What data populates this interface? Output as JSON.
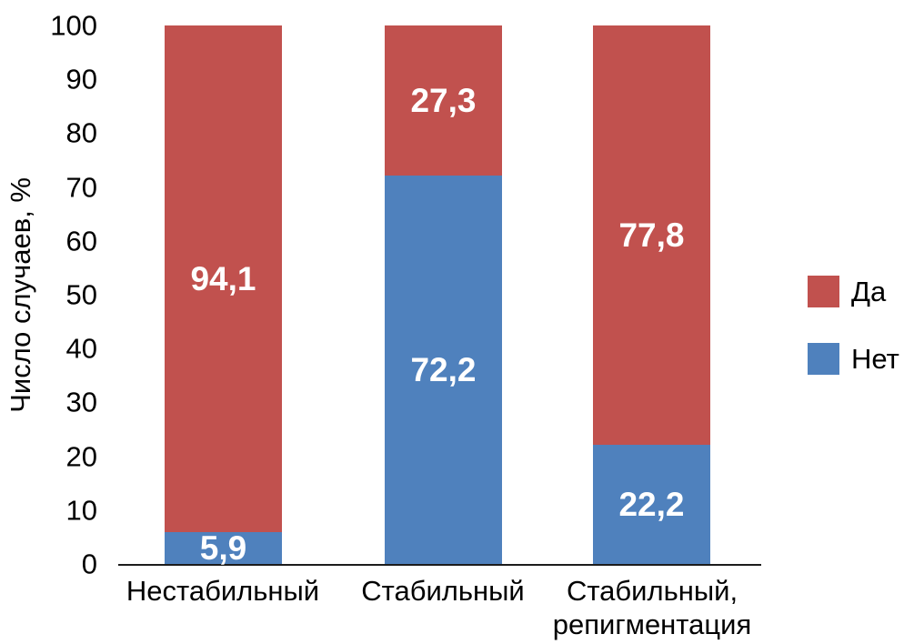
{
  "chart_data": {
    "type": "bar",
    "variant": "stacked-column",
    "title": "",
    "xlabel": "",
    "ylabel": "Число случаев, %",
    "ylim": [
      0,
      100
    ],
    "yticks": [
      0,
      10,
      20,
      30,
      40,
      50,
      60,
      70,
      80,
      90,
      100
    ],
    "grid": false,
    "legend_position": "right",
    "categories": [
      "Нестабильный",
      "Стабильный",
      "Стабильный,\nрепигментация"
    ],
    "series": [
      {
        "name": "Да",
        "color": "#C1514E",
        "stack_position": "top",
        "values": [
          94.1,
          27.3,
          77.8
        ],
        "labels": [
          "94,1",
          "27,3",
          "77,8"
        ]
      },
      {
        "name": "Нет",
        "color": "#4F81BD",
        "stack_position": "bottom",
        "values": [
          5.9,
          72.2,
          22.2
        ],
        "labels": [
          "5,9",
          "72,2",
          "22,2"
        ]
      }
    ],
    "value_label_style": "white-bold-inside"
  }
}
